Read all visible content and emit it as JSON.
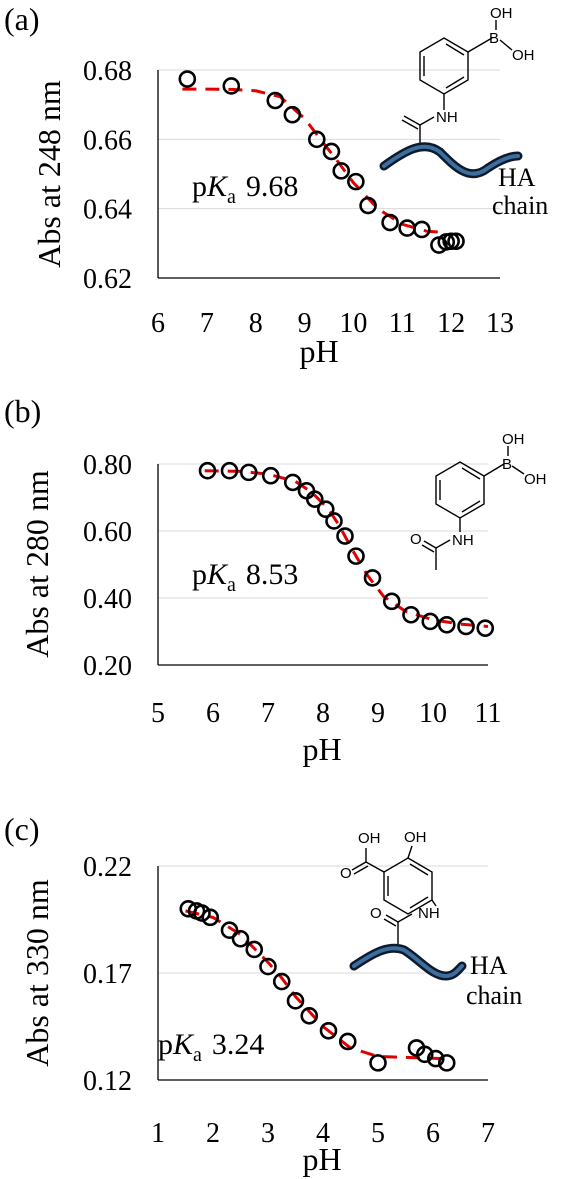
{
  "chart_data": [
    {
      "panel_label": "(a)",
      "type": "scatter",
      "xlabel": "pH",
      "ylabel": "Abs at 248 nm",
      "xlim": [
        6,
        13
      ],
      "ylim": [
        0.62,
        0.68
      ],
      "x_ticks": [
        "6",
        "7",
        "8",
        "9",
        "10",
        "11",
        "12",
        "13"
      ],
      "y_ticks": [
        "0.62",
        "0.64",
        "0.66",
        "0.68"
      ],
      "grid": "horizontal",
      "annotation_prefix": "p",
      "annotation_k": "K",
      "annotation_sub": "a",
      "annotation_value": "9.68",
      "structure_labels": [
        "OH",
        "B",
        "OH",
        "NH",
        "HA",
        "chain"
      ],
      "series": [
        {
          "kind": "measured",
          "marker": "open-circle",
          "x": [
            6.6,
            7.5,
            8.4,
            8.75,
            9.25,
            9.55,
            9.75,
            10.05,
            10.3,
            10.75,
            11.1,
            11.4,
            11.75,
            11.9,
            12.0,
            12.1
          ],
          "y": [
            0.6774,
            0.6754,
            0.6712,
            0.6671,
            0.66,
            0.6565,
            0.6509,
            0.6478,
            0.6409,
            0.636,
            0.6344,
            0.634,
            0.6295,
            0.6304,
            0.6306,
            0.6306
          ]
        },
        {
          "kind": "fit",
          "line": "red-dashed",
          "color": "#e00000",
          "x": [
            6.5,
            7.0,
            7.5,
            8.0,
            8.5,
            9.0,
            9.3,
            9.68,
            10.0,
            10.5,
            11.0,
            11.5,
            11.8
          ],
          "y": [
            0.6745,
            0.6745,
            0.6744,
            0.674,
            0.6723,
            0.666,
            0.6605,
            0.6536,
            0.6475,
            0.64,
            0.6355,
            0.6335,
            0.6332
          ]
        }
      ]
    },
    {
      "panel_label": "(b)",
      "type": "scatter",
      "xlabel": "pH",
      "ylabel": "Abs at 280 nm",
      "xlim": [
        5,
        11
      ],
      "ylim": [
        0.2,
        0.8
      ],
      "x_ticks": [
        "5",
        "6",
        "7",
        "8",
        "9",
        "10",
        "11"
      ],
      "y_ticks": [
        "0.20",
        "0.40",
        "0.60",
        "0.80"
      ],
      "grid": "horizontal",
      "annotation_prefix": "p",
      "annotation_k": "K",
      "annotation_sub": "a",
      "annotation_value": "8.53",
      "structure_labels": [
        "OH",
        "B",
        "OH",
        "O",
        "NH"
      ],
      "series": [
        {
          "kind": "measured",
          "marker": "open-circle",
          "x": [
            5.9,
            6.3,
            6.65,
            7.05,
            7.45,
            7.7,
            7.85,
            8.05,
            8.2,
            8.4,
            8.6,
            8.9,
            9.25,
            9.6,
            9.95,
            10.25,
            10.6,
            10.95
          ],
          "y": [
            0.78,
            0.78,
            0.775,
            0.765,
            0.745,
            0.72,
            0.695,
            0.665,
            0.63,
            0.585,
            0.525,
            0.46,
            0.39,
            0.35,
            0.33,
            0.32,
            0.315,
            0.31
          ]
        },
        {
          "kind": "fit",
          "line": "red-dashed",
          "color": "#e00000",
          "x": [
            5.85,
            6.5,
            7.0,
            7.5,
            7.8,
            8.1,
            8.3,
            8.53,
            8.8,
            9.1,
            9.5,
            10.0,
            10.5,
            11.0
          ],
          "y": [
            0.78,
            0.778,
            0.77,
            0.748,
            0.715,
            0.665,
            0.615,
            0.545,
            0.47,
            0.405,
            0.36,
            0.335,
            0.322,
            0.315
          ]
        }
      ]
    },
    {
      "panel_label": "(c)",
      "type": "scatter",
      "xlabel": "pH",
      "ylabel": "Abs at 330 nm",
      "xlim": [
        1,
        7
      ],
      "ylim": [
        0.12,
        0.22
      ],
      "x_ticks": [
        "1",
        "2",
        "3",
        "4",
        "5",
        "6",
        "7"
      ],
      "y_ticks": [
        "0.12",
        "0.17",
        "0.22"
      ],
      "grid": "horizontal",
      "annotation_prefix": "p",
      "annotation_k": "K",
      "annotation_sub": "a",
      "annotation_value": "3.24",
      "structure_labels": [
        "OH",
        "OH",
        "O",
        "O",
        "NH",
        "HA",
        "chain"
      ],
      "series": [
        {
          "kind": "measured",
          "marker": "open-circle",
          "x": [
            1.55,
            1.7,
            1.8,
            1.95,
            2.3,
            2.5,
            2.75,
            3.0,
            3.25,
            3.5,
            3.75,
            4.1,
            4.45,
            5.0,
            5.7,
            5.85,
            6.05,
            6.25
          ],
          "y": [
            0.2,
            0.199,
            0.198,
            0.196,
            0.19,
            0.186,
            0.181,
            0.173,
            0.166,
            0.157,
            0.15,
            0.143,
            0.138,
            0.128,
            0.135,
            0.132,
            0.13,
            0.128
          ]
        },
        {
          "kind": "fit",
          "line": "red-dashed",
          "color": "#e00000",
          "x": [
            1.5,
            2.0,
            2.5,
            3.0,
            3.24,
            3.5,
            4.0,
            4.5,
            5.0,
            6.2
          ],
          "y": [
            0.199,
            0.196,
            0.188,
            0.175,
            0.168,
            0.159,
            0.145,
            0.135,
            0.131,
            0.13
          ]
        }
      ]
    }
  ]
}
